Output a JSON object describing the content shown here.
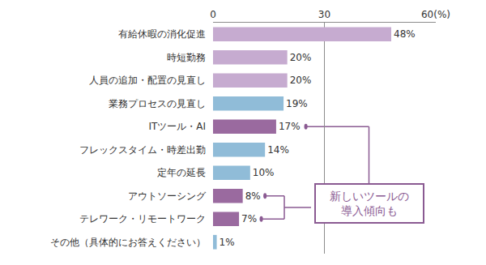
{
  "chart_data": {
    "type": "bar",
    "orientation": "horizontal",
    "categories": [
      "有給休暇の消化促進",
      "時短勤務",
      "人員の追加・配置の見直し",
      "業務プロセスの見直し",
      "ITツール・AI",
      "フレックスタイム・時差出勤",
      "定年の延長",
      "アウトソーシング",
      "テレワーク・リモートワーク",
      "その他（具体的にお答えください）"
    ],
    "values": [
      48,
      20,
      20,
      19,
      17,
      14,
      10,
      8,
      7,
      1
    ],
    "value_labels": [
      "48%",
      "20%",
      "20%",
      "19%",
      "17%",
      "14%",
      "10%",
      "8%",
      "7%",
      "1%"
    ],
    "colors": [
      "#c6abd0",
      "#c6abd0",
      "#c6abd0",
      "#90bcd8",
      "#9a6a9f",
      "#90bcd8",
      "#90bcd8",
      "#9a6a9f",
      "#9a6a9f",
      "#90bcd8"
    ],
    "xlim": [
      0,
      60
    ],
    "xticks": [
      0,
      30,
      {
        "value": 60,
        "label": "60(%)"
      }
    ],
    "grid": true,
    "data_labels": true,
    "annotations": [
      {
        "text": "新しいツールの\n導入傾向も",
        "categories": [
          "ITツール・AI",
          "アウトソーシング",
          "テレワーク・リモートワーク"
        ]
      }
    ]
  }
}
